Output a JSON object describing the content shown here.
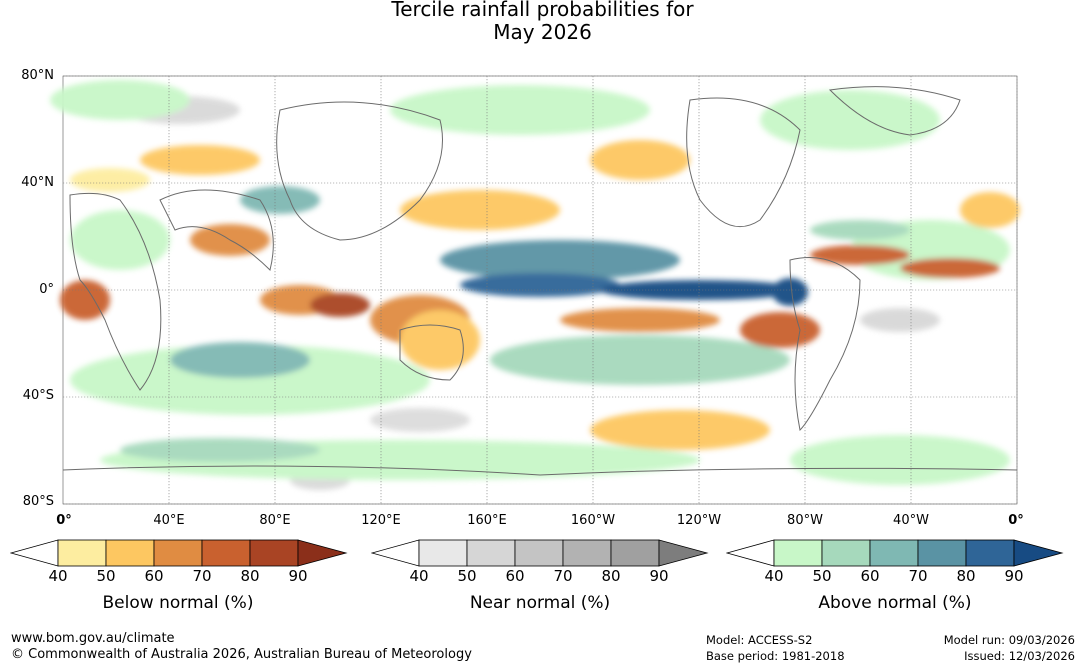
{
  "title_line1": "Tercile rainfall probabilities for",
  "title_line2": "May 2026",
  "map": {
    "lat_labels": [
      "80°N",
      "40°N",
      "0°",
      "40°S",
      "80°S"
    ],
    "lon_labels": [
      "0°",
      "40°E",
      "80°E",
      "120°E",
      "160°E",
      "160°W",
      "120°W",
      "80°W",
      "40°W",
      "0°"
    ]
  },
  "legends": [
    {
      "title": "Below normal (%)",
      "ticks": [
        "40",
        "50",
        "60",
        "70",
        "80",
        "90"
      ],
      "colors": [
        "#ffffff",
        "#fdeda0",
        "#fdc761",
        "#e08c42",
        "#c9612f",
        "#a94424",
        "#8b2f1a"
      ]
    },
    {
      "title": "Near normal (%)",
      "ticks": [
        "40",
        "50",
        "60",
        "70",
        "80",
        "90"
      ],
      "colors": [
        "#ffffff",
        "#e8e8e8",
        "#d6d6d6",
        "#c4c4c4",
        "#b2b2b2",
        "#a0a0a0",
        "#7d7d7d"
      ]
    },
    {
      "title": "Above normal (%)",
      "ticks": [
        "40",
        "50",
        "60",
        "70",
        "80",
        "90"
      ],
      "colors": [
        "#ffffff",
        "#c8f7c8",
        "#a6d9bc",
        "#7fb8b3",
        "#5a93a4",
        "#2f6597",
        "#174b83"
      ]
    }
  ],
  "footer": {
    "url": "www.bom.gov.au/climate",
    "copyright": "© Commonwealth of Australia 2026, Australian Bureau of Meteorology",
    "model": "Model: ACCESS-S2",
    "base_period": "Base period: 1981-2018",
    "model_run": "Model run: 09/03/2026",
    "issued": "Issued: 12/03/2026"
  }
}
